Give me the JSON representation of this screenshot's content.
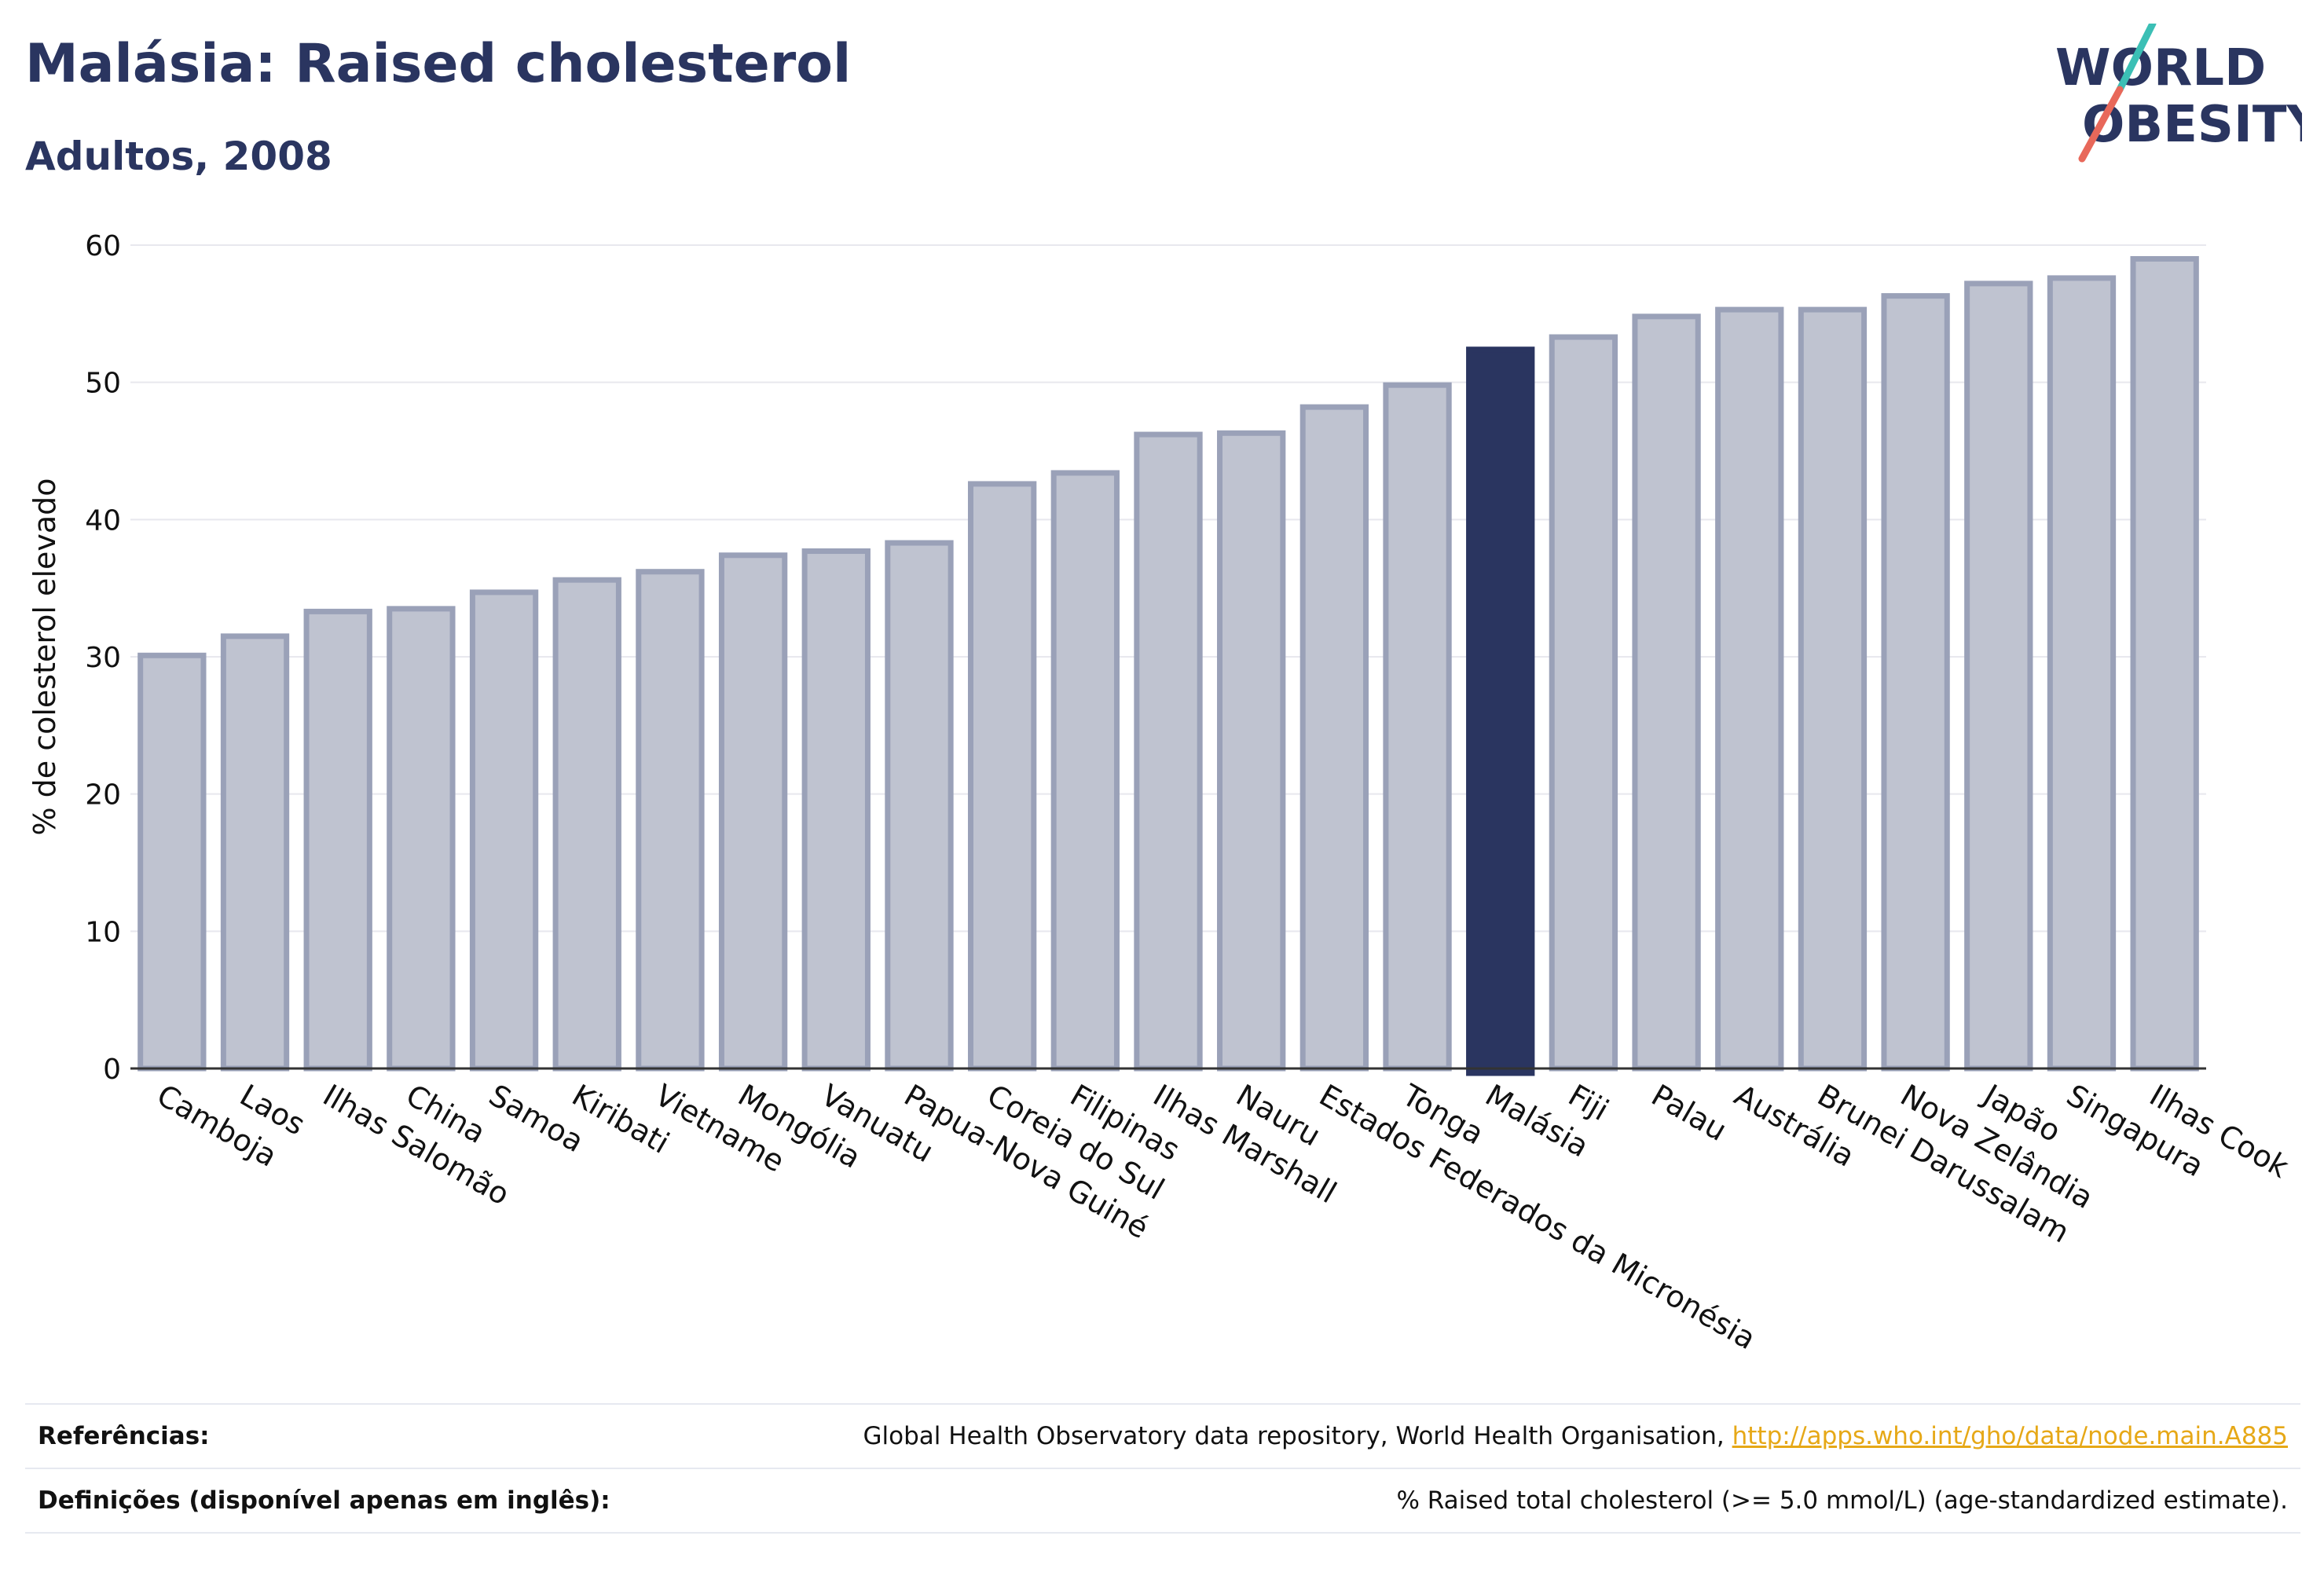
{
  "header": {
    "title": "Malásia: Raised cholesterol",
    "subtitle": "Adultos, 2008"
  },
  "logo": {
    "line1": "WORLD",
    "line2": "OBESITY",
    "accent_teal": "#3bbfb5",
    "accent_coral": "#e8685a",
    "text_color": "#2a3560"
  },
  "chart_data": {
    "type": "bar",
    "ylabel": "% de colesterol elevado",
    "ylim": [
      0,
      60
    ],
    "yticks": [
      0,
      10,
      20,
      30,
      40,
      50,
      60
    ],
    "highlight": "Malásia",
    "colors": {
      "bar_fill": "#bfc3d0",
      "bar_stroke": "#9aa1b8",
      "highlight_fill": "#2a3560",
      "grid": "#e8e8ee",
      "axis": "#333333"
    },
    "categories": [
      "Camboja",
      "Laos",
      "Ilhas Salomão",
      "China",
      "Samoa",
      "Kiribati",
      "Vietname",
      "Mongólia",
      "Vanuatu",
      "Papua-Nova Guiné",
      "Coreia do Sul",
      "Filipinas",
      "Ilhas Marshall",
      "Nauru",
      "Estados Federados da Micronésia",
      "Tonga",
      "Malásia",
      "Fiji",
      "Palau",
      "Austrália",
      "Brunei Darussalam",
      "Nova Zelândia",
      "Japão",
      "Singapura",
      "Ilhas Cook"
    ],
    "values": [
      30.1,
      31.5,
      33.3,
      33.5,
      34.7,
      35.6,
      36.2,
      37.4,
      37.7,
      38.3,
      42.6,
      43.4,
      46.2,
      46.3,
      48.2,
      49.8,
      52.4,
      53.3,
      54.8,
      55.3,
      55.3,
      56.3,
      57.2,
      57.6,
      59.0
    ]
  },
  "footer": {
    "references_label": "Referências:",
    "references_text": "Global Health Observatory data repository, World Health Organisation, ",
    "references_link": "http://apps.who.int/gho/data/node.main.A885",
    "definitions_label": "Definições (disponível apenas em inglês):",
    "definitions_text": "% Raised total cholesterol (>= 5.0 mmol/L) (age-standardized estimate)."
  }
}
